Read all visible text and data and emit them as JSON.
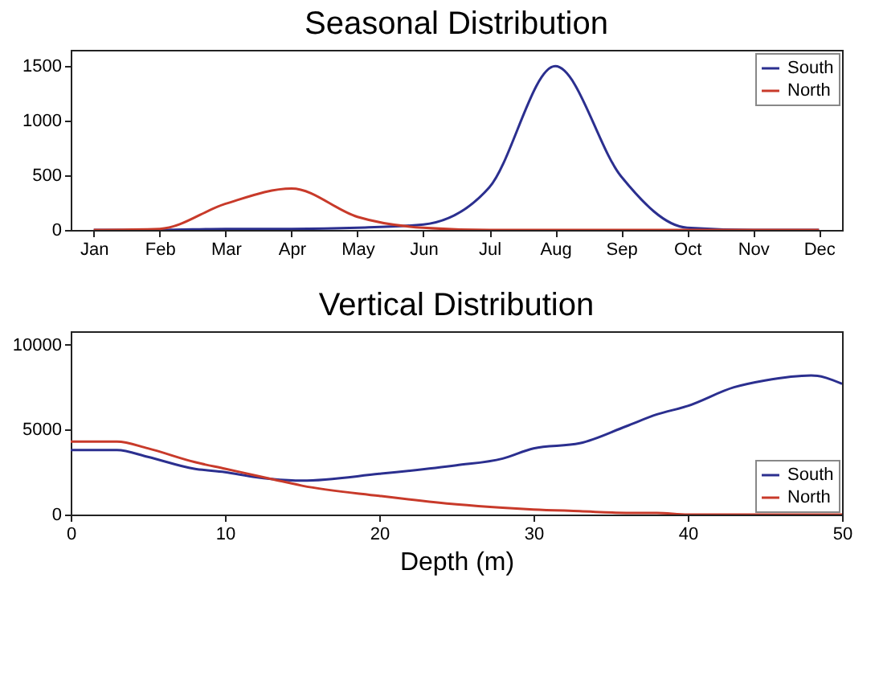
{
  "chart_data": [
    {
      "type": "line",
      "title": "Seasonal Distribution",
      "categories": [
        "Jan",
        "Feb",
        "Mar",
        "Apr",
        "May",
        "Jun",
        "Jul",
        "Aug",
        "Sep",
        "Oct",
        "Nov",
        "Dec"
      ],
      "series": [
        {
          "name": "South",
          "color": "#2b2f8f",
          "values": [
            0,
            0,
            10,
            10,
            20,
            50,
            390,
            1500,
            490,
            20,
            0,
            0
          ]
        },
        {
          "name": "North",
          "color": "#c83a2a",
          "values": [
            0,
            10,
            240,
            380,
            120,
            20,
            0,
            0,
            0,
            0,
            0,
            0
          ]
        }
      ],
      "ylim": [
        0,
        1650
      ],
      "yticks": [
        0,
        500,
        1000,
        1500
      ],
      "legend": "top right"
    },
    {
      "type": "line",
      "title": "Vertical Distribution",
      "xlabel": "Depth (m)",
      "x": [
        0,
        3,
        5,
        8,
        10,
        12,
        13,
        15,
        20,
        25,
        28,
        30,
        33,
        36,
        38,
        40,
        43,
        45,
        48,
        50
      ],
      "series": [
        {
          "name": "South",
          "color": "#2b2f8f",
          "values": [
            3800,
            3800,
            3400,
            2700,
            2500,
            2200,
            2100,
            2000,
            2400,
            2900,
            3300,
            3900,
            4200,
            5200,
            5900,
            6400,
            7500,
            7900,
            8200,
            7700
          ]
        },
        {
          "name": "North",
          "color": "#c83a2a",
          "values": [
            4300,
            4300,
            3900,
            3100,
            2700,
            2300,
            2100,
            1700,
            1100,
            600,
            400,
            300,
            200,
            100,
            100,
            0,
            0,
            0,
            0,
            0
          ]
        }
      ],
      "xlim": [
        0,
        50
      ],
      "xticks": [
        0,
        10,
        20,
        30,
        40,
        50
      ],
      "ylim": [
        0,
        10800
      ],
      "yticks": [
        0,
        5000,
        10000
      ],
      "legend": "bottom right"
    }
  ]
}
